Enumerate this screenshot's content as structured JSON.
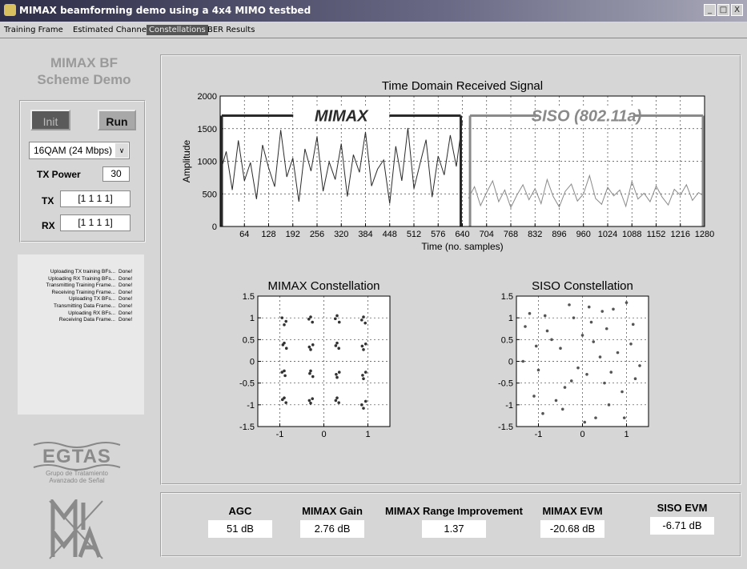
{
  "window": {
    "title": "MIMAX beamforming demo using a 4x4 MIMO testbed"
  },
  "tabs": [
    "Training Frame",
    "Estimated Channels",
    "Constellations",
    "BER Results"
  ],
  "active_tab": 2,
  "side": {
    "title": [
      "MIMAX BF",
      "Scheme Demo"
    ],
    "init": "Init",
    "run": "Run",
    "modulation": "16QAM (24 Mbps)",
    "tx_power_label": "TX Power",
    "tx_power": "30",
    "tx_label": "TX",
    "tx": "[1 1 1 1]",
    "rx_label": "RX",
    "rx": "[1 1 1 1]"
  },
  "log": [
    [
      "Uploading TX training BFs...",
      "Done!"
    ],
    [
      "Uploading RX Training BFs...",
      "Done!"
    ],
    [
      "Transmitting Training Frame...",
      "Done!"
    ],
    [
      "Receiving Training Frame...",
      "Done!"
    ],
    [
      "Uploading TX BFs...",
      "Done!"
    ],
    [
      "Transmitting Data Frame...",
      "Done!"
    ],
    [
      "Uploading RX BFs...",
      "Done!"
    ],
    [
      "Receiving Data Frame...",
      "Done!"
    ]
  ],
  "logo": {
    "name": "EGTAS",
    "subtitle": [
      "Grupo de Tratamiento",
      "Avanzado de Señal"
    ]
  },
  "metrics": [
    {
      "label": "AGC",
      "value": "51 dB"
    },
    {
      "label": "MIMAX Gain",
      "value": "2.76 dB"
    },
    {
      "label": "MIMAX Range Improvement",
      "value": "1.37"
    },
    {
      "label": "MIMAX EVM",
      "value": "-20.68 dB"
    },
    {
      "label": "SISO EVM",
      "value": "-6.71 dB"
    }
  ],
  "chart_data": [
    {
      "type": "line",
      "title": "Time Domain Received Signal",
      "xlabel": "Time (no. samples)",
      "ylabel": "Amplitude",
      "xlim": [
        0,
        1280
      ],
      "ylim": [
        0,
        2000
      ],
      "xticks": [
        64,
        128,
        192,
        256,
        320,
        384,
        448,
        512,
        576,
        640,
        704,
        768,
        832,
        896,
        960,
        1024,
        1088,
        1152,
        1216,
        1280
      ],
      "yticks": [
        0,
        500,
        1000,
        1500,
        2000
      ],
      "grid": true,
      "series": [
        {
          "name": "MIMAX",
          "color": "#2a2a2a",
          "x": [
            0,
            16,
            32,
            48,
            64,
            80,
            96,
            112,
            128,
            144,
            160,
            176,
            192,
            208,
            224,
            240,
            256,
            272,
            288,
            304,
            320,
            336,
            352,
            368,
            384,
            400,
            416,
            432,
            448,
            464,
            480,
            496,
            512,
            528,
            544,
            560,
            576,
            592,
            608,
            624,
            640
          ],
          "values": [
            820,
            1150,
            560,
            1320,
            700,
            980,
            420,
            1250,
            900,
            610,
            1480,
            760,
            1050,
            380,
            1190,
            850,
            1380,
            540,
            990,
            720,
            1270,
            460,
            1100,
            830,
            1450,
            620,
            880,
            1020,
            350,
            1230,
            700,
            1510,
            580,
            960,
            1330,
            450,
            1080,
            790,
            1400,
            920,
            1620
          ]
        },
        {
          "name": "SISO (802.11a)",
          "color": "#8a8a8a",
          "x": [
            656,
            672,
            688,
            704,
            720,
            736,
            752,
            768,
            784,
            800,
            816,
            832,
            848,
            864,
            880,
            896,
            912,
            928,
            944,
            960,
            976,
            992,
            1008,
            1024,
            1040,
            1056,
            1072,
            1088,
            1104,
            1120,
            1136,
            1152,
            1168,
            1184,
            1200,
            1216,
            1232,
            1248,
            1264,
            1280
          ],
          "values": [
            430,
            610,
            320,
            520,
            700,
            380,
            560,
            290,
            480,
            640,
            410,
            580,
            350,
            720,
            460,
            300,
            540,
            650,
            390,
            500,
            780,
            430,
            340,
            600,
            470,
            560,
            310,
            690,
            420,
            510,
            380,
            620,
            450,
            330,
            570,
            480,
            640,
            400,
            520,
            460
          ]
        }
      ]
    },
    {
      "type": "scatter",
      "title": "MIMAX Constellation",
      "xlim": [
        -1.5,
        1.5
      ],
      "ylim": [
        -1.5,
        1.5
      ],
      "xticks": [
        -1,
        0,
        1
      ],
      "yticks": [
        -1.5,
        -1,
        -0.5,
        0,
        0.5,
        1,
        1.5
      ],
      "grid": true,
      "series": [
        {
          "color": "#333333",
          "x": [
            -0.95,
            -0.86,
            -0.9,
            -0.34,
            -0.26,
            -0.3,
            0.26,
            0.35,
            0.3,
            0.86,
            0.94,
            0.9,
            -0.93,
            -0.85,
            -0.9,
            -0.33,
            -0.25,
            -0.3,
            0.27,
            0.34,
            0.3,
            0.87,
            0.95,
            0.9,
            -0.95,
            -0.88,
            -0.9,
            -0.32,
            -0.25,
            -0.3,
            0.28,
            0.35,
            0.3,
            0.88,
            0.95,
            0.9,
            -0.94,
            -0.86,
            -0.9,
            -0.33,
            -0.26,
            -0.3,
            0.27,
            0.34,
            0.3,
            0.86,
            0.95,
            0.9
          ],
          "values": [
            1.0,
            0.92,
            0.84,
            0.97,
            0.9,
            1.02,
            0.98,
            0.9,
            1.05,
            0.95,
            0.88,
            1.02,
            0.38,
            0.3,
            0.42,
            0.33,
            0.38,
            0.27,
            0.36,
            0.3,
            0.42,
            0.35,
            0.4,
            0.27,
            -0.25,
            -0.33,
            -0.22,
            -0.28,
            -0.35,
            -0.22,
            -0.3,
            -0.25,
            -0.37,
            -0.32,
            -0.25,
            -0.4,
            -0.88,
            -0.95,
            -0.84,
            -0.9,
            -0.86,
            -0.96,
            -0.9,
            -0.95,
            -0.84,
            -1.0,
            -0.92,
            -1.08
          ]
        }
      ]
    },
    {
      "type": "scatter",
      "title": "SISO Constellation",
      "xlim": [
        -1.5,
        1.5
      ],
      "ylim": [
        -1.5,
        1.5
      ],
      "xticks": [
        -1,
        0,
        1
      ],
      "yticks": [
        -1.5,
        -1,
        -0.5,
        0,
        0.5,
        1,
        1.5
      ],
      "grid": true,
      "series": [
        {
          "color": "#555555",
          "x": [
            -1.2,
            -0.8,
            -0.3,
            0.2,
            0.7,
            1.1,
            -1.0,
            -0.5,
            0.0,
            0.5,
            1.3,
            -1.3,
            -0.6,
            0.1,
            0.9,
            -0.2,
            0.4,
            -0.9,
            1.0,
            0.6,
            -0.4,
            -1.1,
            0.3,
            0.8,
            -0.7,
            1.2,
            -0.1,
            0.55,
            -1.35,
            0.15,
            -0.45,
            0.95,
            -0.85,
            0.25,
            1.15,
            -0.25,
            0.65,
            -1.05,
            0.05,
            0.45
          ],
          "values": [
            1.1,
            0.7,
            1.3,
            0.9,
            1.2,
            0.4,
            -0.2,
            0.3,
            0.6,
            -0.5,
            -0.1,
            0.8,
            -0.9,
            -0.3,
            -0.7,
            1.0,
            0.1,
            -1.2,
            1.35,
            -1.0,
            -0.6,
            -0.8,
            -1.3,
            0.2,
            0.5,
            -0.4,
            -0.15,
            0.75,
            0.0,
            1.25,
            -1.1,
            -1.3,
            1.05,
            0.45,
            0.85,
            -0.45,
            -0.25,
            0.35,
            -1.4,
            1.15
          ]
        }
      ]
    }
  ]
}
